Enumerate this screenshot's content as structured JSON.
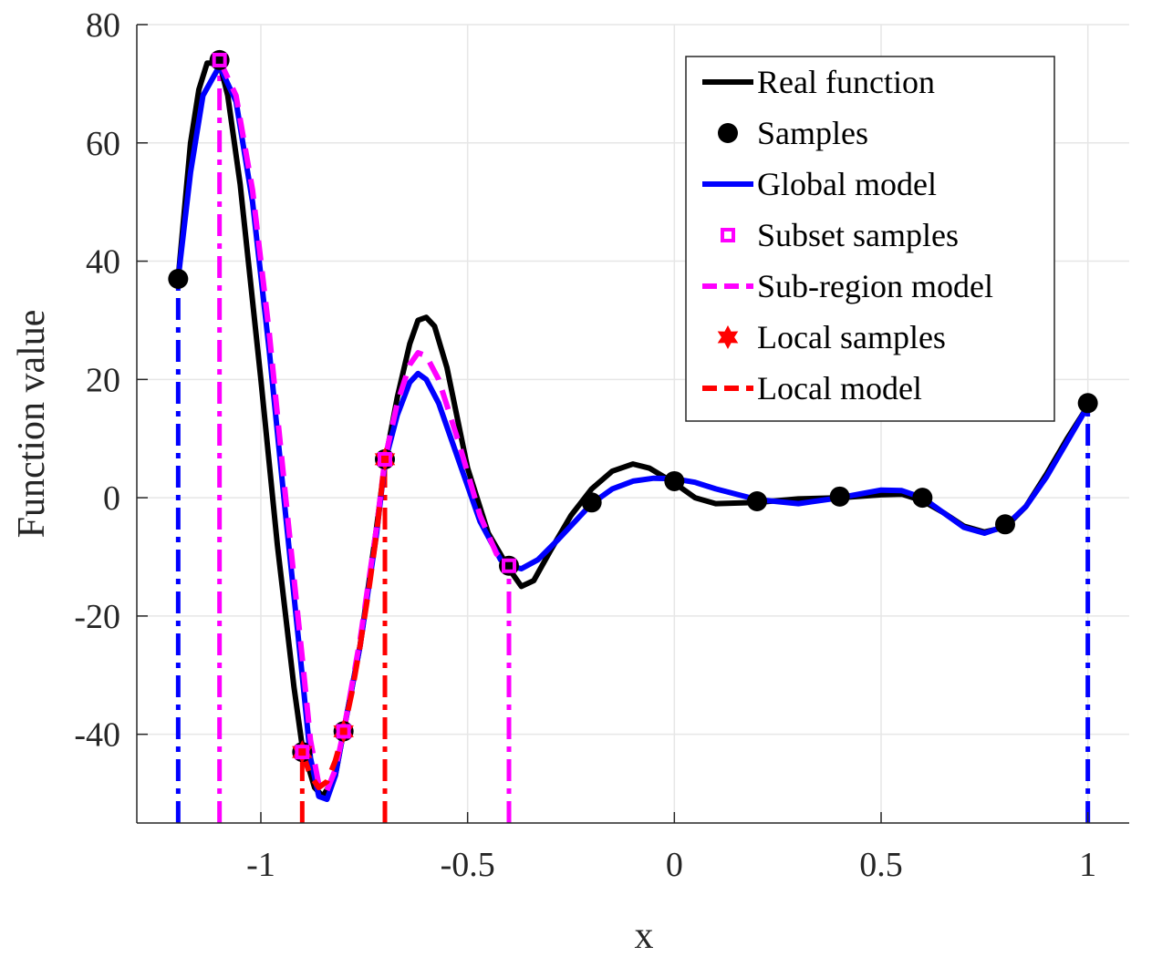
{
  "chart_data": {
    "type": "line",
    "xlabel": "x",
    "ylabel": "Function value",
    "xlim": [
      -1.3,
      1.1
    ],
    "ylim": [
      -55,
      80
    ],
    "xticks": [
      -1,
      -0.5,
      0,
      0.5,
      1
    ],
    "xtick_labels": [
      "-1",
      "-0.5",
      "0",
      "0.5",
      "1"
    ],
    "yticks": [
      -40,
      -20,
      0,
      20,
      40,
      60,
      80
    ],
    "ytick_labels": [
      "-40",
      "-20",
      "0",
      "20",
      "40",
      "60",
      "80"
    ],
    "grid": true,
    "legend_position": "top-right",
    "colors": {
      "real": "#000000",
      "global": "#0000ff",
      "subset": "#ff00ff",
      "local": "#ff0000",
      "grid": "#e6e6e6",
      "axis": "#262626"
    },
    "series": [
      {
        "name": "Real function",
        "style": "solid",
        "color": "#000000",
        "points": [
          [
            -1.2,
            37
          ],
          [
            -1.17,
            60
          ],
          [
            -1.15,
            69
          ],
          [
            -1.13,
            73.5
          ],
          [
            -1.1,
            73.5
          ],
          [
            -1.08,
            68
          ],
          [
            -1.05,
            53
          ],
          [
            -1.0,
            20
          ],
          [
            -0.96,
            -8
          ],
          [
            -0.92,
            -32
          ],
          [
            -0.9,
            -42
          ],
          [
            -0.87,
            -49
          ],
          [
            -0.85,
            -50.5
          ],
          [
            -0.82,
            -47
          ],
          [
            -0.8,
            -39.5
          ],
          [
            -0.76,
            -25
          ],
          [
            -0.72,
            -5
          ],
          [
            -0.7,
            6
          ],
          [
            -0.67,
            17
          ],
          [
            -0.64,
            26
          ],
          [
            -0.62,
            30
          ],
          [
            -0.6,
            30.5
          ],
          [
            -0.58,
            29
          ],
          [
            -0.55,
            22
          ],
          [
            -0.5,
            5
          ],
          [
            -0.45,
            -6
          ],
          [
            -0.4,
            -12
          ],
          [
            -0.37,
            -15
          ],
          [
            -0.34,
            -14
          ],
          [
            -0.3,
            -9
          ],
          [
            -0.25,
            -3
          ],
          [
            -0.2,
            1.5
          ],
          [
            -0.15,
            4.5
          ],
          [
            -0.1,
            5.7
          ],
          [
            -0.06,
            5
          ],
          [
            0.0,
            2.5
          ],
          [
            0.05,
            0
          ],
          [
            0.1,
            -1
          ],
          [
            0.2,
            -0.8
          ],
          [
            0.3,
            -0.2
          ],
          [
            0.4,
            0
          ],
          [
            0.5,
            0.5
          ],
          [
            0.55,
            0.6
          ],
          [
            0.6,
            -0.5
          ],
          [
            0.65,
            -2.5
          ],
          [
            0.7,
            -4.8
          ],
          [
            0.75,
            -5.8
          ],
          [
            0.8,
            -5
          ],
          [
            0.85,
            -1.5
          ],
          [
            0.9,
            4
          ],
          [
            0.95,
            10
          ],
          [
            1.0,
            15.5
          ]
        ]
      },
      {
        "name": "Samples",
        "style": "markers",
        "marker": "circle",
        "color": "#000000",
        "points": [
          [
            -1.2,
            37
          ],
          [
            -1.1,
            74
          ],
          [
            -0.9,
            -43
          ],
          [
            -0.8,
            -39.5
          ],
          [
            -0.7,
            6.5
          ],
          [
            -0.4,
            -11.5
          ],
          [
            -0.2,
            -0.8
          ],
          [
            0.0,
            2.8
          ],
          [
            0.2,
            -0.6
          ],
          [
            0.4,
            0.2
          ],
          [
            0.6,
            0
          ],
          [
            0.8,
            -4.5
          ],
          [
            1.0,
            16
          ]
        ]
      },
      {
        "name": "Global model",
        "style": "solid",
        "color": "#0000ff",
        "points": [
          [
            -1.2,
            37
          ],
          [
            -1.17,
            55
          ],
          [
            -1.14,
            68
          ],
          [
            -1.1,
            73
          ],
          [
            -1.06,
            67
          ],
          [
            -1.02,
            50
          ],
          [
            -0.98,
            25
          ],
          [
            -0.94,
            -3
          ],
          [
            -0.9,
            -30
          ],
          [
            -0.88,
            -44
          ],
          [
            -0.86,
            -50.5
          ],
          [
            -0.84,
            -51
          ],
          [
            -0.82,
            -47
          ],
          [
            -0.8,
            -39.5
          ],
          [
            -0.76,
            -25
          ],
          [
            -0.72,
            -6
          ],
          [
            -0.7,
            6
          ],
          [
            -0.67,
            14
          ],
          [
            -0.64,
            19.5
          ],
          [
            -0.62,
            21
          ],
          [
            -0.6,
            20
          ],
          [
            -0.57,
            16
          ],
          [
            -0.52,
            6
          ],
          [
            -0.47,
            -4
          ],
          [
            -0.42,
            -10.5
          ],
          [
            -0.4,
            -11.5
          ],
          [
            -0.37,
            -12
          ],
          [
            -0.33,
            -10.5
          ],
          [
            -0.28,
            -7
          ],
          [
            -0.2,
            -1
          ],
          [
            -0.15,
            1.5
          ],
          [
            -0.1,
            2.8
          ],
          [
            -0.05,
            3.3
          ],
          [
            0.0,
            3.2
          ],
          [
            0.05,
            2.6
          ],
          [
            0.1,
            1.5
          ],
          [
            0.2,
            -0.3
          ],
          [
            0.3,
            -1
          ],
          [
            0.4,
            0
          ],
          [
            0.5,
            1.3
          ],
          [
            0.55,
            1.2
          ],
          [
            0.6,
            0
          ],
          [
            0.65,
            -2.5
          ],
          [
            0.7,
            -5
          ],
          [
            0.75,
            -6
          ],
          [
            0.8,
            -4.8
          ],
          [
            0.85,
            -1.5
          ],
          [
            0.9,
            3.5
          ],
          [
            0.95,
            9.5
          ],
          [
            1.0,
            15.5
          ]
        ]
      },
      {
        "name": "Subset samples",
        "style": "markers",
        "marker": "square",
        "color": "#ff00ff",
        "points": [
          [
            -1.1,
            74
          ],
          [
            -0.9,
            -43
          ],
          [
            -0.8,
            -39.5
          ],
          [
            -0.7,
            6.5
          ],
          [
            -0.4,
            -11.5
          ]
        ]
      },
      {
        "name": "Sub-region model",
        "style": "dashed",
        "color": "#ff00ff",
        "points": [
          [
            -1.1,
            74
          ],
          [
            -1.06,
            68
          ],
          [
            -1.02,
            52
          ],
          [
            -0.98,
            28
          ],
          [
            -0.94,
            0
          ],
          [
            -0.9,
            -27
          ],
          [
            -0.88,
            -41
          ],
          [
            -0.86,
            -48.5
          ],
          [
            -0.84,
            -49.5
          ],
          [
            -0.82,
            -46
          ],
          [
            -0.8,
            -39.5
          ],
          [
            -0.76,
            -24
          ],
          [
            -0.72,
            -5
          ],
          [
            -0.7,
            6.5
          ],
          [
            -0.67,
            16
          ],
          [
            -0.64,
            22.5
          ],
          [
            -0.62,
            24.5
          ],
          [
            -0.6,
            24
          ],
          [
            -0.57,
            20
          ],
          [
            -0.52,
            9
          ],
          [
            -0.47,
            -3
          ],
          [
            -0.43,
            -9.5
          ],
          [
            -0.4,
            -11.5
          ]
        ]
      },
      {
        "name": "Local samples",
        "style": "markers",
        "marker": "hexagram",
        "color": "#ff0000",
        "points": [
          [
            -0.9,
            -43
          ],
          [
            -0.8,
            -39.5
          ],
          [
            -0.7,
            6.5
          ]
        ]
      },
      {
        "name": "Local model",
        "style": "dashed",
        "color": "#ff0000",
        "points": [
          [
            -0.9,
            -43
          ],
          [
            -0.88,
            -47
          ],
          [
            -0.86,
            -49
          ],
          [
            -0.84,
            -48
          ],
          [
            -0.82,
            -44.5
          ],
          [
            -0.8,
            -39.5
          ],
          [
            -0.78,
            -33
          ],
          [
            -0.76,
            -25
          ],
          [
            -0.74,
            -16
          ],
          [
            -0.72,
            -6
          ],
          [
            -0.7,
            6.5
          ]
        ]
      }
    ],
    "vertical_bounds": [
      {
        "x": -1.2,
        "color": "#0000ff",
        "y_top": 37
      },
      {
        "x": 1.0,
        "color": "#0000ff",
        "y_top": 16
      },
      {
        "x": -1.1,
        "color": "#ff00ff",
        "y_top": 74
      },
      {
        "x": -0.4,
        "color": "#ff00ff",
        "y_top": -11.5
      },
      {
        "x": -0.9,
        "color": "#ff0000",
        "y_top": -43
      },
      {
        "x": -0.7,
        "color": "#ff0000",
        "y_top": 6.5
      }
    ]
  }
}
